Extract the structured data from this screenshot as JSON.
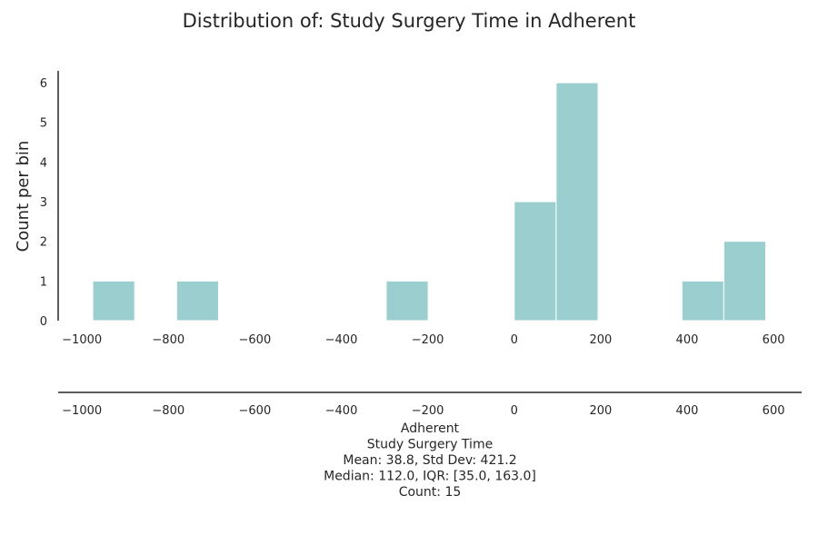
{
  "chart_data": {
    "type": "bar",
    "title": "Distribution of: Study Surgery Time in Adherent",
    "xlabel": "",
    "ylabel": "Count per bin",
    "x_ticks": [
      -1000,
      -800,
      -600,
      -400,
      -200,
      0,
      200,
      400,
      600
    ],
    "y_ticks": [
      0,
      1,
      2,
      3,
      4,
      5,
      6
    ],
    "xlim": [
      -1055,
      665
    ],
    "ylim": [
      0,
      6.3
    ],
    "grid": false,
    "bins": [
      {
        "x0": -975,
        "x1": -878,
        "count": 1
      },
      {
        "x0": -781,
        "x1": -684,
        "count": 1
      },
      {
        "x0": -296,
        "x1": -199,
        "count": 1
      },
      {
        "x0": 0,
        "x1": 97,
        "count": 3
      },
      {
        "x0": 97,
        "x1": 194,
        "count": 6
      },
      {
        "x0": 388,
        "x1": 485,
        "count": 1
      },
      {
        "x0": 485,
        "x1": 582,
        "count": 2
      }
    ],
    "box_axis_ticks": [
      -1000,
      -800,
      -600,
      -400,
      -200,
      0,
      200,
      400,
      600
    ],
    "summary_lines": [
      "Adherent",
      "Study Surgery Time",
      "Mean: 38.8, Std Dev: 421.2",
      "Median: 112.0, IQR: [35.0, 163.0]",
      "Count: 15"
    ],
    "bar_color": "#9acecf"
  }
}
